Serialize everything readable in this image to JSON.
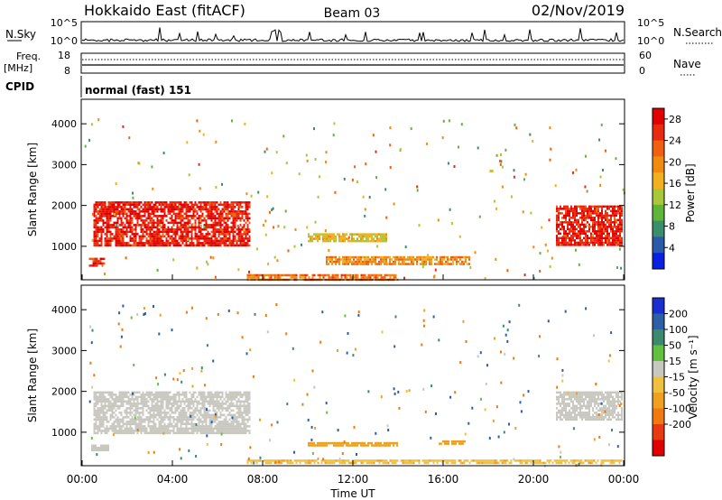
{
  "header": {
    "title": "Hokkaido East (fitACF)",
    "beam": "Beam 03",
    "date": "02/Nov/2019"
  },
  "nsky_panel": {
    "left_label": "N.Sky",
    "right_label": "N.Search",
    "left_ticks": [
      "10^5",
      "10^0"
    ],
    "right_ticks": [
      "10^5",
      "10^0"
    ]
  },
  "freq_panel": {
    "left_label_top": "Freq.",
    "left_label_unit": "[MHz]",
    "left_ticks": [
      "18",
      "8"
    ],
    "right_label": "Nave",
    "right_ticks": [
      "60",
      "0"
    ]
  },
  "cpid_panel": {
    "label": "CPID",
    "text": "normal (fast) 151"
  },
  "chart_data": [
    {
      "type": "heatmap",
      "name_on_chart": "Power",
      "ylabel": "Slant Range [km]",
      "y_ticks": [
        "1000",
        "2000",
        "3000",
        "4000"
      ],
      "ylim": [
        180,
        4600
      ],
      "colorbar_label": "Power [dB]",
      "colorbar_ticks": [
        "4",
        "8",
        "12",
        "16",
        "20",
        "24",
        "28"
      ],
      "colorbar_colors": [
        "#0a20e0",
        "#2a5aa8",
        "#3a8e6c",
        "#5fb53a",
        "#a8c83a",
        "#f0b020",
        "#f08a10",
        "#f06010",
        "#e82a10",
        "#e00000"
      ],
      "regions": [
        {
          "t": [
            0.5,
            7.4
          ],
          "r": [
            1000,
            2100
          ],
          "value": 28
        },
        {
          "t": [
            0.3,
            1.0
          ],
          "r": [
            520,
            720
          ],
          "value": 26
        },
        {
          "t": [
            21.0,
            23.9
          ],
          "r": [
            1050,
            2000
          ],
          "value": 28
        },
        {
          "t": [
            7.3,
            14.0
          ],
          "r": [
            200,
            320
          ],
          "value": 22
        },
        {
          "t": [
            10.0,
            13.5
          ],
          "r": [
            1150,
            1320
          ],
          "value": 16
        },
        {
          "t": [
            10.8,
            17.2
          ],
          "r": [
            560,
            760
          ],
          "value": 20
        }
      ]
    },
    {
      "type": "heatmap",
      "name_on_chart": "Velocity",
      "ylabel": "Slant Range [km]",
      "y_ticks": [
        "1000",
        "2000",
        "3000",
        "4000"
      ],
      "ylim": [
        180,
        4600
      ],
      "xlabel": "Time UT",
      "x_ticks": [
        "00:00",
        "04:00",
        "08:00",
        "12:00",
        "16:00",
        "20:00",
        "00:00"
      ],
      "colorbar_label": "Velocity [m s⁻¹]",
      "colorbar_ticks": [
        "200",
        "100",
        "50",
        "15",
        "-15",
        "-50",
        "-100",
        "-200"
      ],
      "colorbar_colors": [
        "#1a2ed0",
        "#2d5fa6",
        "#3b8a70",
        "#62c040",
        "#c8c8c0",
        "#f0c040",
        "#f0a020",
        "#f07a10",
        "#e83a10",
        "#e00000"
      ],
      "regions": [
        {
          "t": [
            0.5,
            7.4
          ],
          "r": [
            1000,
            2000
          ],
          "value": 0
        },
        {
          "t": [
            0.4,
            1.2
          ],
          "r": [
            550,
            700
          ],
          "value": 0
        },
        {
          "t": [
            21.0,
            23.9
          ],
          "r": [
            1300,
            2000
          ],
          "value": 0
        },
        {
          "t": [
            10.0,
            14.0
          ],
          "r": [
            680,
            760
          ],
          "value": -60
        },
        {
          "t": [
            15.8,
            17.0
          ],
          "r": [
            700,
            800
          ],
          "value": -60
        },
        {
          "t": [
            7.3,
            23.9
          ],
          "r": [
            220,
            330
          ],
          "value": -30
        }
      ]
    }
  ]
}
